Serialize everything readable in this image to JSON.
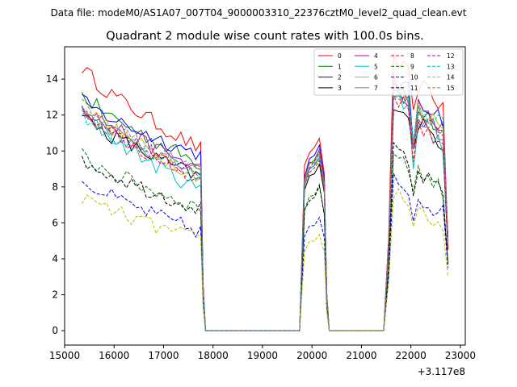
{
  "chart_data": {
    "type": "line",
    "suptitle": "Data file: modeM0/AS1A07_007T04_9000003310_22376cztM0_level2_quad_clean.evt",
    "title": "Quadrant 2 module wise count rates with 100.0s bins.",
    "xlabel": "",
    "ylabel": "",
    "x_offset_label": "+3.117e8",
    "xlim": [
      15000,
      23100
    ],
    "ylim": [
      -0.8,
      15.8
    ],
    "xticks": [
      15000,
      16000,
      17000,
      18000,
      19000,
      20000,
      21000,
      22000,
      23000
    ],
    "yticks": [
      0,
      2,
      4,
      6,
      8,
      10,
      12,
      14
    ],
    "grid": false,
    "legend_position": "top-right",
    "legend_columns": 4,
    "segments": [
      {
        "start": 15350,
        "end": 17750
      },
      {
        "start": 17850,
        "end": 19750
      },
      {
        "start": 19850,
        "end": 20250
      },
      {
        "start": 20350,
        "end": 21450
      },
      {
        "start": 21650,
        "end": 22750
      }
    ],
    "series": [
      {
        "name": "0",
        "color": "#ff0000",
        "style": "solid",
        "g1": 14.7,
        "g1end": 10.1,
        "g2": 10.7,
        "g3s": 15.0,
        "g3e": 12.5,
        "g3min": 12.2,
        "last": 5.0
      },
      {
        "name": "1",
        "color": "#008000",
        "style": "solid",
        "g1": 13.2,
        "g1end": 9.3,
        "g2": 10.1,
        "g3s": 13.6,
        "g3e": 11.0,
        "g3min": 10.0,
        "last": 5.0
      },
      {
        "name": "2",
        "color": "#0000ff",
        "style": "solid",
        "g1": 12.8,
        "g1end": 9.8,
        "g2": 10.2,
        "g3s": 14.0,
        "g3e": 11.8,
        "g3min": 10.2,
        "last": 5.0
      },
      {
        "name": "3",
        "color": "#000000",
        "style": "solid",
        "g1": 12.0,
        "g1end": 8.5,
        "g2": 9.2,
        "g3s": 12.8,
        "g3e": 10.4,
        "g3min": 10.0,
        "last": 4.5
      },
      {
        "name": "4",
        "color": "#bf00bf",
        "style": "solid",
        "g1": 12.6,
        "g1end": 9.0,
        "g2": 10.0,
        "g3s": 13.8,
        "g3e": 11.2,
        "g3min": 10.2,
        "last": 5.0
      },
      {
        "name": "5",
        "color": "#00bfbf",
        "style": "solid",
        "g1": 12.2,
        "g1end": 7.8,
        "g2": 9.8,
        "g3s": 13.3,
        "g3e": 10.2,
        "g3min": 8.9,
        "last": 5.0
      },
      {
        "name": "6",
        "color": "#bfbf00",
        "style": "solid",
        "g1": 12.6,
        "g1end": 8.6,
        "g2": 9.9,
        "g3s": 13.9,
        "g3e": 11.2,
        "g3min": 10.2,
        "last": 5.0
      },
      {
        "name": "7",
        "color": "#808080",
        "style": "solid",
        "g1": 12.4,
        "g1end": 8.7,
        "g2": 9.6,
        "g3s": 13.5,
        "g3e": 10.8,
        "g3min": 10.0,
        "last": 5.0
      },
      {
        "name": "8",
        "color": "#ff0000",
        "style": "dashed",
        "g1": 12.2,
        "g1end": 8.4,
        "g2": 9.5,
        "g3s": 13.2,
        "g3e": 10.0,
        "g3min": 9.3,
        "last": 4.5
      },
      {
        "name": "9",
        "color": "#008000",
        "style": "dashed",
        "g1": 9.8,
        "g1end": 6.8,
        "g2": 8.0,
        "g3s": 10.0,
        "g3e": 7.8,
        "g3min": 7.7,
        "last": 3.8
      },
      {
        "name": "10",
        "color": "#0000ff",
        "style": "dashed",
        "g1": 8.4,
        "g1end": 5.5,
        "g2": 6.2,
        "g3s": 8.4,
        "g3e": 6.5,
        "g3min": 6.0,
        "last": 3.5
      },
      {
        "name": "11",
        "color": "#000000",
        "style": "dashed",
        "g1": 9.6,
        "g1end": 6.8,
        "g2": 7.9,
        "g3s": 10.0,
        "g3e": 7.6,
        "g3min": 7.4,
        "last": 3.7
      },
      {
        "name": "12",
        "color": "#bf00bf",
        "style": "dashed",
        "g1": 12.4,
        "g1end": 8.6,
        "g2": 9.8,
        "g3s": 13.6,
        "g3e": 10.6,
        "g3min": 10.0,
        "last": 5.0
      },
      {
        "name": "13",
        "color": "#00bfbf",
        "style": "dashed",
        "g1": 12.1,
        "g1end": 8.5,
        "g2": 9.7,
        "g3s": 13.2,
        "g3e": 11.4,
        "g3min": 10.5,
        "last": 5.0
      },
      {
        "name": "14",
        "color": "#bfbf00",
        "style": "dashed",
        "g1": 7.5,
        "g1end": 5.0,
        "g2": 5.3,
        "g3s": 7.8,
        "g3e": 5.7,
        "g3min": 5.7,
        "last": 3.0
      },
      {
        "name": "15",
        "color": "#808080",
        "style": "dashed",
        "g1": 12.5,
        "g1end": 8.8,
        "g2": 9.9,
        "g3s": 13.4,
        "g3e": 10.9,
        "g3min": 10.0,
        "last": 5.0
      }
    ]
  }
}
